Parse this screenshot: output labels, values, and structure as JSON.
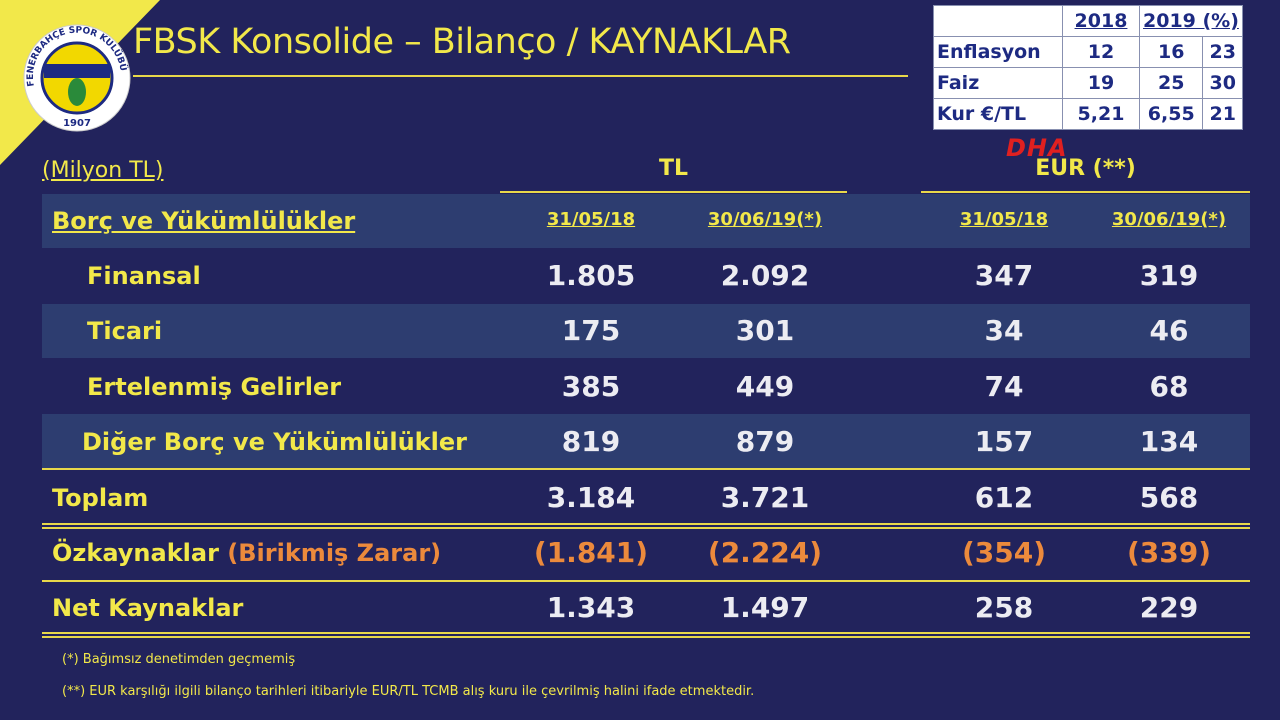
{
  "header": {
    "title": "FBSK Konsolide – Bilanço / KAYNAKLAR",
    "logo_text": "FENERBAHÇE SPOR KULÜBÜ",
    "logo_year": "1907",
    "watermark": "DHA"
  },
  "inset": {
    "header": [
      "2018",
      "2019 (%)"
    ],
    "rows": [
      [
        "Enflasyon",
        "12",
        "16",
        "23"
      ],
      [
        "Faiz",
        "19",
        "25",
        "30"
      ],
      [
        "Kur €/TL",
        "5,21",
        "6,55",
        "21"
      ]
    ]
  },
  "table": {
    "unit": "(Milyon TL)",
    "groups": [
      "TL",
      "EUR (**)"
    ],
    "header_label": "Borç ve Yükümlülükler",
    "columns": [
      "31/05/18",
      "30/06/19(*)",
      "31/05/18",
      "30/06/19(*)"
    ],
    "rows": [
      {
        "label": "Finansal",
        "values": [
          "1.805",
          "2.092",
          "347",
          "319"
        ]
      },
      {
        "label": "Ticari",
        "values": [
          "175",
          "301",
          "34",
          "46"
        ]
      },
      {
        "label": "Ertelenmiş Gelirler",
        "values": [
          "385",
          "449",
          "74",
          "68"
        ]
      },
      {
        "label": "Diğer Borç ve Yükümlülükler",
        "values": [
          "819",
          "879",
          "157",
          "134"
        ]
      },
      {
        "label": "Toplam",
        "values": [
          "3.184",
          "3.721",
          "612",
          "568"
        ]
      },
      {
        "label": "Özkaynaklar",
        "sublabel": "(Birikmiş Zarar)",
        "values": [
          "(1.841)",
          "(2.224)",
          "(354)",
          "(339)"
        ]
      },
      {
        "label": "Net Kaynaklar",
        "values": [
          "1.343",
          "1.497",
          "258",
          "229"
        ]
      }
    ]
  },
  "footnotes": [
    "(*) Bağımsız denetimden geçmemiş",
    "(**) EUR karşılığı ilgili bilanço tarihleri itibariyle EUR/TL TCMB alış kuru ile çevrilmiş halini ifade etmektedir."
  ]
}
